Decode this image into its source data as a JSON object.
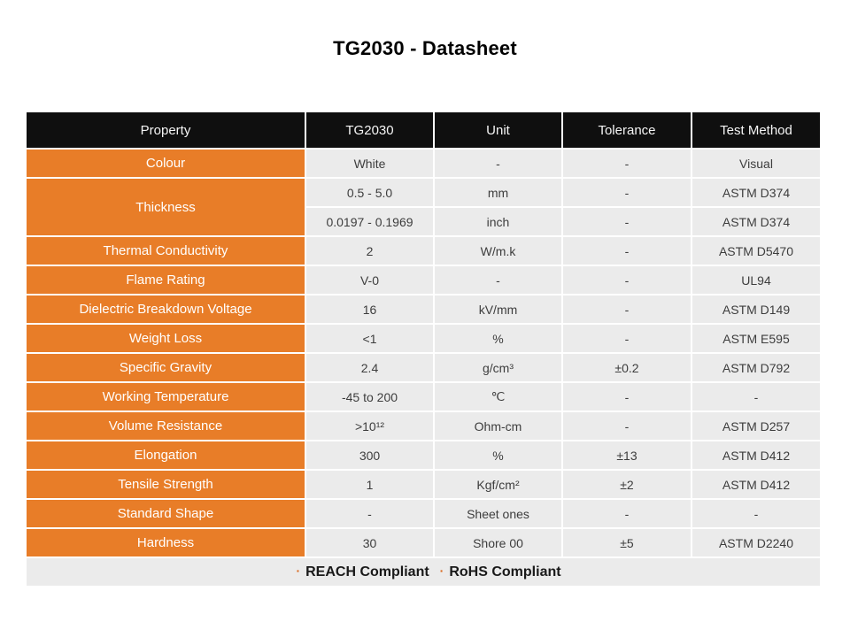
{
  "page": {
    "title": "TG2030 - Datasheet"
  },
  "colors": {
    "header_bg": "#0f0f0f",
    "property_bg": "#e87d28",
    "cell_bg": "#ebebeb",
    "cell_text": "#3d3d3d",
    "accent": "#d9661a"
  },
  "table": {
    "columns": [
      "Property",
      "TG2030",
      "Unit",
      "Tolerance",
      "Test Method"
    ],
    "rows": [
      {
        "property": "Colour",
        "cells": [
          [
            "White",
            "-",
            "-",
            "Visual"
          ]
        ]
      },
      {
        "property": "Thickness",
        "cells": [
          [
            "0.5 - 5.0",
            "mm",
            "-",
            "ASTM D374"
          ],
          [
            "0.0197 - 0.1969",
            "inch",
            "-",
            "ASTM D374"
          ]
        ]
      },
      {
        "property": "Thermal Conductivity",
        "cells": [
          [
            "2",
            "W/m.k",
            "-",
            "ASTM D5470"
          ]
        ]
      },
      {
        "property": "Flame Rating",
        "cells": [
          [
            "V-0",
            "-",
            "-",
            "UL94"
          ]
        ]
      },
      {
        "property": "Dielectric Breakdown Voltage",
        "cells": [
          [
            "16",
            "kV/mm",
            "-",
            "ASTM D149"
          ]
        ]
      },
      {
        "property": "Weight Loss",
        "cells": [
          [
            "<1",
            "%",
            "-",
            "ASTM E595"
          ]
        ]
      },
      {
        "property": "Specific Gravity",
        "cells": [
          [
            "2.4",
            "g/cm³",
            "±0.2",
            "ASTM D792"
          ]
        ]
      },
      {
        "property": "Working Temperature",
        "cells": [
          [
            "-45 to 200",
            "℃",
            "-",
            "-"
          ]
        ]
      },
      {
        "property": "Volume Resistance",
        "cells": [
          [
            ">10¹²",
            "Ohm-cm",
            "-",
            "ASTM D257"
          ]
        ]
      },
      {
        "property": "Elongation",
        "cells": [
          [
            "300",
            "%",
            "±13",
            "ASTM D412"
          ]
        ]
      },
      {
        "property": "Tensile Strength",
        "cells": [
          [
            "1",
            "Kgf/cm²",
            "±2",
            "ASTM D412"
          ]
        ]
      },
      {
        "property": "Standard Shape",
        "cells": [
          [
            "-",
            "Sheet ones",
            "-",
            "-"
          ]
        ]
      },
      {
        "property": "Hardness",
        "cells": [
          [
            "30",
            "Shore 00",
            "±5",
            "ASTM D2240"
          ]
        ]
      }
    ],
    "footer": {
      "bullet": "·",
      "items": [
        "REACH Compliant",
        "RoHS Compliant"
      ]
    }
  }
}
